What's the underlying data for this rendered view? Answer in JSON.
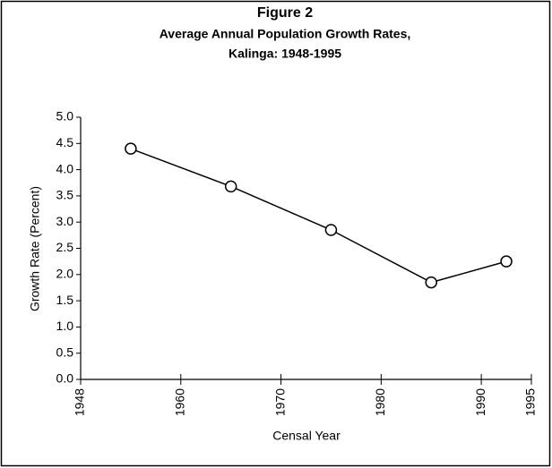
{
  "chart_data": {
    "type": "line",
    "title": "Figure 2",
    "subtitle": [
      "Average Annual Population Growth Rates,",
      "Kalinga: 1948-1995"
    ],
    "x_label": "Censal Year",
    "y_label": "Growth Rate (Percent)",
    "x": [
      1954,
      1965,
      1975,
      1985,
      1992.5
    ],
    "series": [
      {
        "name": "Growth Rate",
        "color": "#000000",
        "values": [
          4.4,
          3.68,
          2.85,
          1.85,
          2.25
        ]
      }
    ],
    "xlim": [
      1948,
      1995
    ],
    "xticks": [
      1948,
      1960,
      1970,
      1980,
      1990,
      1995
    ],
    "ylim": [
      0,
      5
    ],
    "yticks": [
      {
        "value": 0,
        "label": "0.0"
      },
      {
        "value": 0.5,
        "label": "0.5"
      },
      {
        "value": 1,
        "label": "1.0"
      },
      {
        "value": 1.5,
        "label": "1.5"
      },
      {
        "value": 2,
        "label": "2.0"
      },
      {
        "value": 2.5,
        "label": "2.5"
      },
      {
        "value": 3,
        "label": "3.0"
      },
      {
        "value": 3.5,
        "label": "3.5"
      },
      {
        "value": 4,
        "label": "4.0"
      },
      {
        "value": 4.5,
        "label": "4.5"
      },
      {
        "value": 5,
        "label": "5.0"
      }
    ],
    "grid": false
  }
}
